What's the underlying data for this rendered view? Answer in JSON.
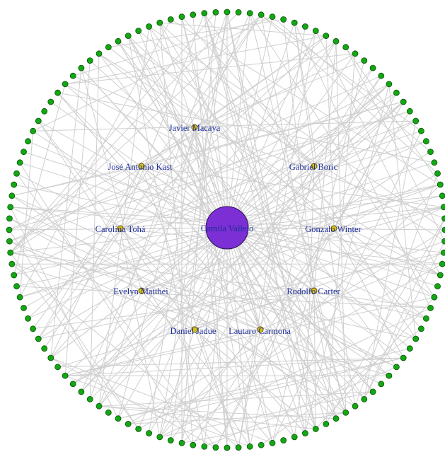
{
  "colors": {
    "background": "#ffffff",
    "edge": "#cfcfcf",
    "ring_node": "#12a812",
    "inner_node": "#d8c21a",
    "center_node": "#7b2fd4",
    "label": "#1f2f9a"
  },
  "network": {
    "center": {
      "label": "Camila Vallejo"
    },
    "labeled_nodes": [
      {
        "id": "javier-macaya",
        "label": "Javier Macaya"
      },
      {
        "id": "jose-antonio-kast",
        "label": "José Antonio Kast"
      },
      {
        "id": "gabriel-boric",
        "label": "Gabriel Boric"
      },
      {
        "id": "carolina-toha",
        "label": "Carolina Tohá"
      },
      {
        "id": "gonzalo-winter",
        "label": "Gonzalo Winter"
      },
      {
        "id": "evelyn-matthei",
        "label": "Evelyn Matthei"
      },
      {
        "id": "rodolfo-carter",
        "label": "Rodolfo Carter"
      },
      {
        "id": "daniel-jadue",
        "label": "Daniel Jadue"
      },
      {
        "id": "lautaro-carmona",
        "label": "Lautaro Carmona"
      }
    ],
    "ring_node_count": 120
  }
}
